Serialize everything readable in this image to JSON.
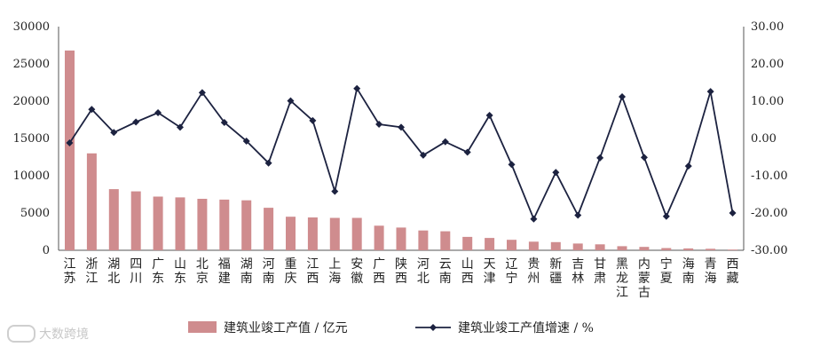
{
  "watermark": {
    "text": "大数跨境"
  },
  "chart_data": {
    "type": "bar",
    "categories": [
      "江苏",
      "浙江",
      "湖北",
      "四川",
      "广东",
      "山东",
      "北京",
      "福建",
      "湖南",
      "河南",
      "重庆",
      "江西",
      "上海",
      "安徽",
      "广西",
      "陕西",
      "河北",
      "云南",
      "山西",
      "天津",
      "辽宁",
      "贵州",
      "新疆",
      "吉林",
      "甘肃",
      "黑龙江",
      "内蒙古",
      "宁夏",
      "海南",
      "青海",
      "西藏"
    ],
    "series": [
      {
        "name": "建筑业竣工产值 / 亿元",
        "type": "bar",
        "axis": "left",
        "color": "#cf8c8e",
        "values": [
          26800,
          13000,
          8200,
          7900,
          7200,
          7100,
          6900,
          6800,
          6700,
          5700,
          4500,
          4400,
          4350,
          4350,
          3300,
          3050,
          2650,
          2550,
          1800,
          1650,
          1400,
          1150,
          1100,
          900,
          800,
          550,
          450,
          300,
          250,
          200,
          100
        ]
      },
      {
        "name": "建筑业竣工产值增速 / %",
        "type": "line",
        "axis": "right",
        "color": "#1c2240",
        "marker": "diamond",
        "values": [
          -1.2,
          7.8,
          1.6,
          4.4,
          6.9,
          3.0,
          12.3,
          4.3,
          -0.7,
          -6.6,
          10.1,
          4.8,
          -14.2,
          13.4,
          3.8,
          3.0,
          -4.5,
          -0.9,
          -3.7,
          6.2,
          -7.0,
          -21.6,
          -9.1,
          -20.6,
          -5.2,
          11.2,
          -5.1,
          -20.9,
          -7.4,
          12.6,
          -20.0
        ]
      }
    ],
    "y_left": {
      "min": 0,
      "max": 30000,
      "ticks": [
        "0",
        "5000",
        "10000",
        "15000",
        "20000",
        "25000",
        "30000"
      ]
    },
    "y_right": {
      "min": -30,
      "max": 30,
      "ticks": [
        "-30.00",
        "-20.00",
        "-10.00",
        "0.00",
        "10.00",
        "20.00",
        "30.00"
      ]
    },
    "grid": false,
    "legend_position": "bottom"
  }
}
